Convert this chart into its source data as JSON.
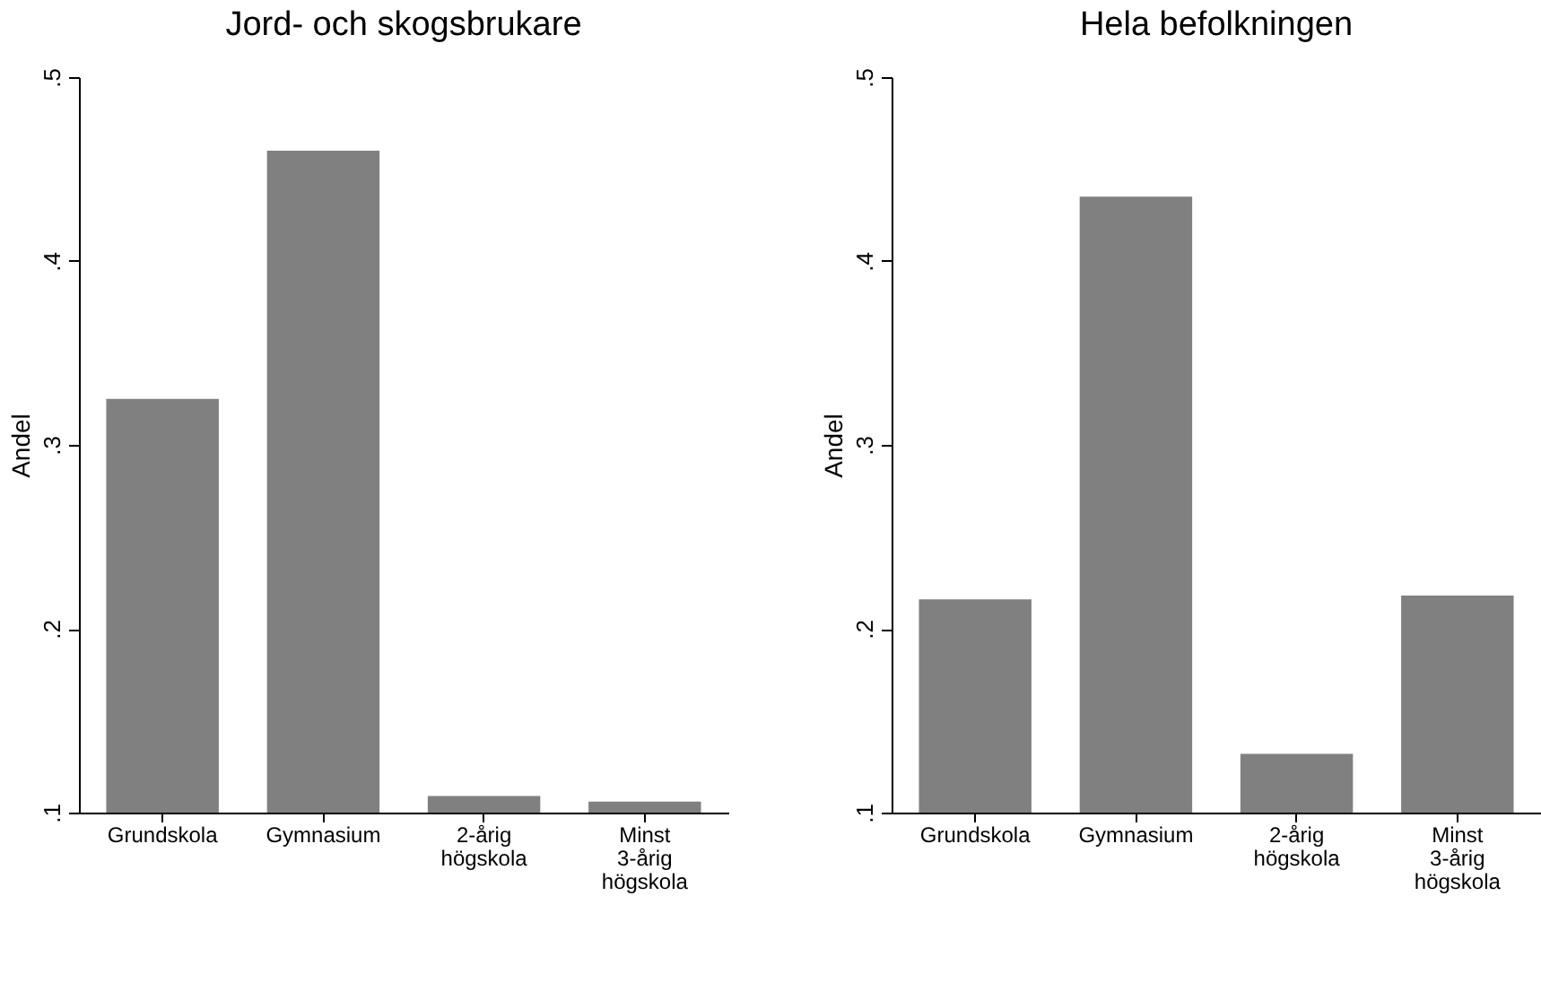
{
  "chart_data": [
    {
      "type": "bar",
      "title": "Jord- och skogsbrukare",
      "ylabel": "Andel",
      "categories": [
        "Grundskola",
        "Gymnasium",
        "2-årig högskola",
        "Minst 3-årig högskola"
      ],
      "values": [
        0.325,
        0.46,
        0.109,
        0.106
      ],
      "color": "#808080",
      "ylim": [
        0.1,
        0.5
      ],
      "yticks": [
        {
          "value": 0.1,
          "label": ".1"
        },
        {
          "value": 0.2,
          "label": ".2"
        },
        {
          "value": 0.3,
          "label": ".3"
        },
        {
          "value": 0.4,
          "label": ".4"
        },
        {
          "value": 0.5,
          "label": ".5"
        }
      ],
      "grid": false
    },
    {
      "type": "bar",
      "title": "Hela befolkningen",
      "ylabel": "Andel",
      "categories": [
        "Grundskola",
        "Gymnasium",
        "2-årig högskola",
        "Minst 3-årig högskola"
      ],
      "values": [
        0.216,
        0.435,
        0.132,
        0.218
      ],
      "color": "#808080",
      "ylim": [
        0.1,
        0.5
      ],
      "yticks": [
        {
          "value": 0.1,
          "label": ".1"
        },
        {
          "value": 0.2,
          "label": ".2"
        },
        {
          "value": 0.3,
          "label": ".3"
        },
        {
          "value": 0.4,
          "label": ".4"
        },
        {
          "value": 0.5,
          "label": ".5"
        }
      ],
      "grid": false
    }
  ]
}
